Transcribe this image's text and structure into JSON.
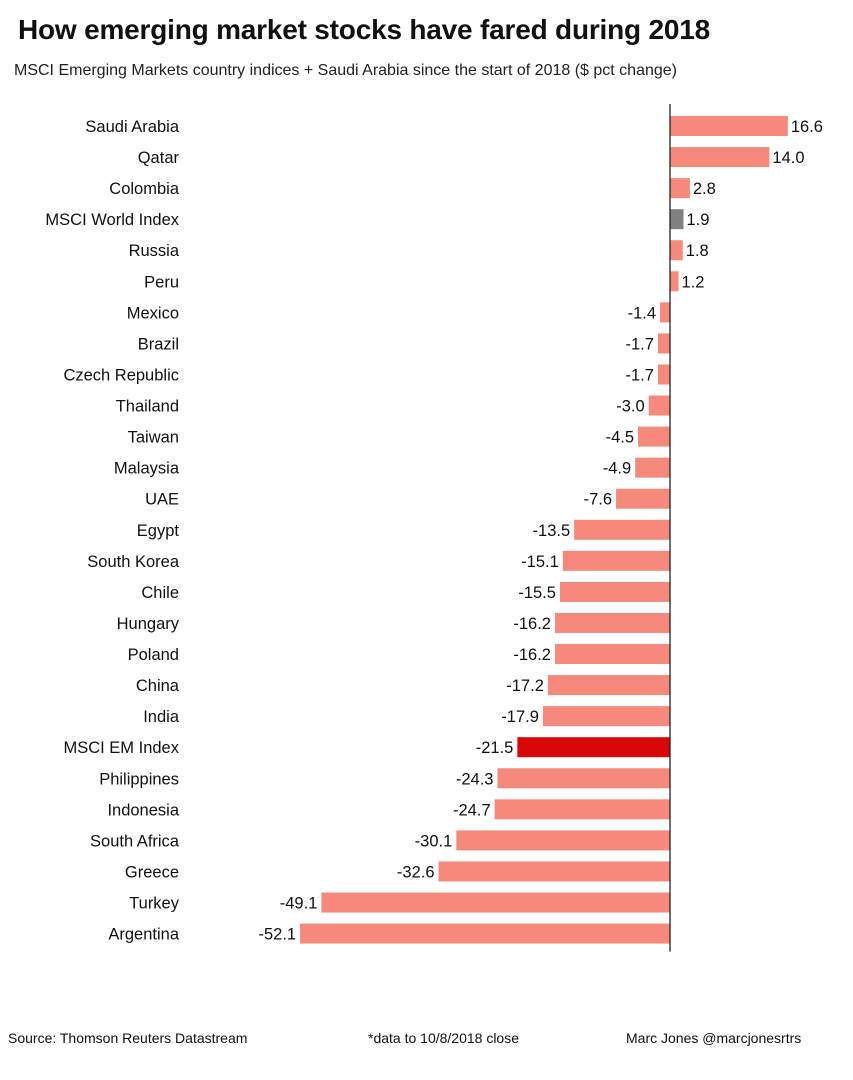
{
  "title": "How emerging market stocks have fared during 2018",
  "subtitle": "MSCI Emerging Markets country indices + Saudi Arabia since the start of 2018 ($ pct change)",
  "footer": {
    "source": "Source: Thomson Reuters Datastream",
    "note": "*data to 10/8/2018 close",
    "author": "Marc Jones @marcjonesrtrs"
  },
  "colors": {
    "bar": "#f58a7c",
    "world_index": "#808080",
    "em_index": "#d80808",
    "axis": "#222222"
  },
  "chart_data": {
    "type": "bar",
    "orientation": "horizontal",
    "title": "How emerging market stocks have fared during 2018",
    "xlabel": "",
    "ylabel": "",
    "categories": [
      "Saudi Arabia",
      "Qatar",
      "Colombia",
      "MSCI World Index",
      "Russia",
      "Peru",
      "Mexico",
      "Brazil",
      "Czech Republic",
      "Thailand",
      "Taiwan",
      "Malaysia",
      "UAE",
      "Egypt",
      "South Korea",
      "Chile",
      "Hungary",
      "Poland",
      "China",
      "India",
      "MSCI EM Index",
      "Philippines",
      "Indonesia",
      "South Africa",
      "Greece",
      "Turkey",
      "Argentina"
    ],
    "values": [
      16.6,
      14.0,
      2.8,
      1.9,
      1.8,
      1.2,
      -1.4,
      -1.7,
      -1.7,
      -3.0,
      -4.5,
      -4.9,
      -7.6,
      -13.5,
      -15.1,
      -15.5,
      -16.2,
      -16.2,
      -17.2,
      -17.9,
      -21.5,
      -24.3,
      -24.7,
      -30.1,
      -32.6,
      -49.1,
      -52.1
    ],
    "labels": [
      "16.6",
      "14.0",
      "2.8",
      "1.9",
      "1.8",
      "1.2",
      "-1.4",
      "-1.7",
      "-1.7",
      "-3.0",
      "-4.5",
      "-4.9",
      "-7.6",
      "-13.5",
      "-15.1",
      "-15.5",
      "-16.2",
      "-16.2",
      "-17.2",
      "-17.9",
      "-21.5",
      "-24.3",
      "-24.7",
      "-30.1",
      "-32.6",
      "-49.1",
      "-52.1"
    ],
    "highlight": {
      "MSCI World Index": "world_index",
      "MSCI EM Index": "em_index"
    },
    "xlim": [
      -52.1,
      16.6
    ],
    "grid": false,
    "legend": "none"
  }
}
